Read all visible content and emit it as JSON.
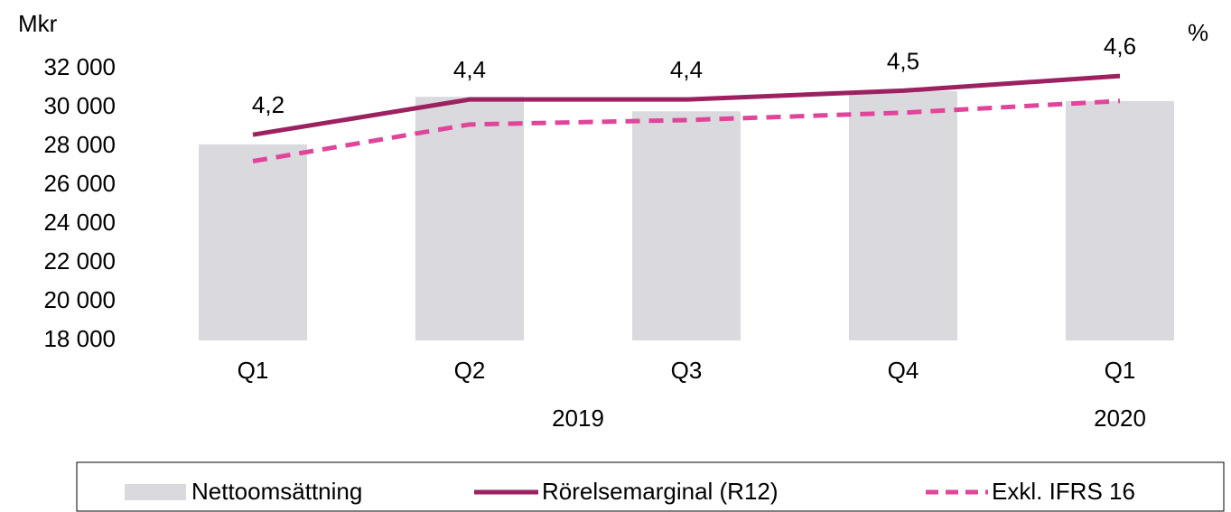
{
  "chart_data": {
    "type": "bar_line",
    "y_axis_label": "Mkr",
    "y2_axis_label": "%",
    "categories": [
      "Q1",
      "Q2",
      "Q3",
      "Q4",
      "Q1"
    ],
    "x_groups": [
      {
        "label": "2019",
        "span": 4
      },
      {
        "label": "2020",
        "span": 1
      }
    ],
    "ylim": [
      18000,
      32000
    ],
    "yticks": [
      {
        "value": 18000,
        "label": "18 000"
      },
      {
        "value": 20000,
        "label": "20 000"
      },
      {
        "value": 22000,
        "label": "22 000"
      },
      {
        "value": 24000,
        "label": "24 000"
      },
      {
        "value": 26000,
        "label": "26 000"
      },
      {
        "value": 28000,
        "label": "28 000"
      },
      {
        "value": 30000,
        "label": "30 000"
      },
      {
        "value": 32000,
        "label": "32 000"
      }
    ],
    "y2lim": [
      2.8,
      4.65
    ],
    "series": [
      {
        "name": "Nettoomsättning",
        "kind": "bar",
        "color": "#d9d9de",
        "values": [
          28100,
          30550,
          29800,
          30840,
          30330
        ]
      },
      {
        "name": "Rörelsemarginal (R12)",
        "kind": "line",
        "axis": "y2",
        "color": "#9b2160",
        "values": [
          4.2,
          4.44,
          4.44,
          4.5,
          4.6
        ],
        "value_labels": [
          "4,2",
          "4,4",
          "4,4",
          "4,5",
          "4,6"
        ]
      },
      {
        "name": "Exkl. IFRS 16",
        "kind": "dashed",
        "axis": "y2",
        "color": "#e0459a",
        "values": [
          4.02,
          4.27,
          4.3,
          4.35,
          4.43
        ]
      }
    ],
    "legend": "bottom"
  }
}
